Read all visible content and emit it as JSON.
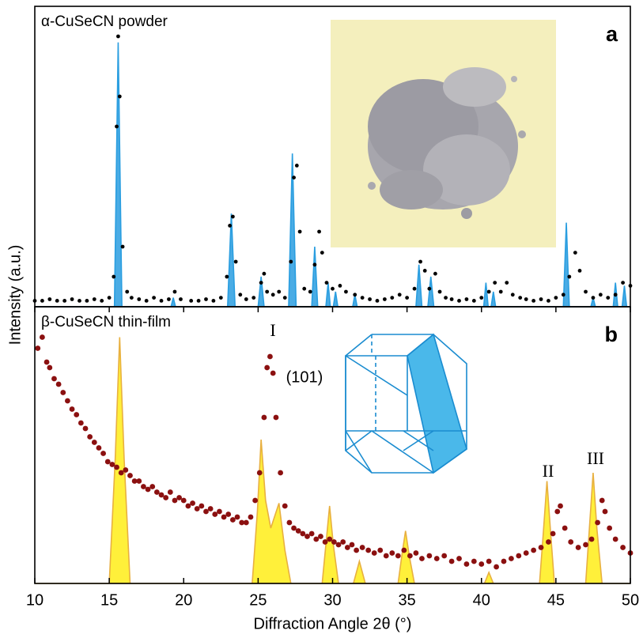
{
  "chart_data": [
    {
      "type": "line",
      "title": "α-CuSeCN powder",
      "panel_label": "a",
      "ylabel": "Intensity (a.u.)",
      "xlim": [
        10,
        50
      ],
      "ylim": [
        0,
        100
      ],
      "series": [
        {
          "kind": "area",
          "color": "#2a9ee0",
          "x": [
            10,
            15.35,
            15.6,
            15.85,
            19.15,
            19.3,
            19.45,
            22.95,
            23.2,
            23.45,
            25.0,
            25.2,
            25.4,
            27.05,
            27.3,
            27.55,
            28.6,
            28.8,
            29.0,
            29.55,
            29.7,
            29.85,
            30.05,
            30.2,
            30.35,
            31.35,
            31.5,
            31.65,
            35.6,
            35.8,
            36.0,
            36.4,
            36.6,
            36.8,
            40.15,
            40.3,
            40.45,
            40.65,
            40.8,
            40.95,
            45.5,
            45.7,
            45.9,
            47.35,
            47.5,
            47.65,
            48.85,
            49.0,
            49.15,
            49.45,
            49.6,
            49.75,
            50
          ],
          "values": [
            0,
            0,
            88,
            0,
            0,
            3,
            0,
            0,
            31,
            0,
            0,
            10,
            0,
            0,
            51,
            0,
            0,
            20,
            0,
            0,
            8,
            0,
            0,
            5,
            0,
            0,
            4,
            0,
            0,
            14,
            0,
            0,
            10,
            0,
            0,
            8,
            0,
            0,
            5,
            0,
            0,
            28,
            0,
            0,
            3,
            0,
            0,
            8,
            0,
            0,
            7,
            0,
            0
          ]
        },
        {
          "kind": "dots",
          "color": "#000000",
          "x": [
            10,
            10.5,
            11,
            11.5,
            12,
            12.5,
            13,
            13.5,
            14,
            14.5,
            15,
            15.3,
            15.5,
            15.6,
            15.7,
            15.9,
            16.2,
            16.5,
            17,
            17.5,
            18,
            18.5,
            19,
            19.4,
            19.8,
            20.5,
            21,
            21.5,
            22,
            22.5,
            22.9,
            23.1,
            23.3,
            23.5,
            23.8,
            24.2,
            24.7,
            25.2,
            25.4,
            25.6,
            26,
            26.4,
            26.8,
            27.2,
            27.4,
            27.6,
            27.8,
            28.1,
            28.5,
            28.8,
            29.1,
            29.3,
            29.6,
            30,
            30.5,
            30.9,
            31.5,
            32,
            32.5,
            33,
            33.5,
            34,
            34.5,
            35,
            35.5,
            35.9,
            36.2,
            36.5,
            36.9,
            37.2,
            37.6,
            38,
            38.5,
            39,
            39.5,
            40,
            40.5,
            40.9,
            41.3,
            41.7,
            42.1,
            42.6,
            43,
            43.5,
            44,
            44.5,
            45,
            45.5,
            45.9,
            46.3,
            46.6,
            47,
            47.5,
            48,
            48.5,
            49,
            49.5,
            50
          ],
          "values": [
            2,
            2,
            2.5,
            2,
            2,
            2.5,
            2,
            2,
            2.5,
            2,
            3,
            10,
            60,
            90,
            70,
            20,
            5,
            3,
            2.5,
            2,
            3,
            2,
            2.5,
            5,
            2.5,
            2,
            2,
            2.5,
            2,
            3,
            10,
            27,
            30,
            15,
            4,
            2.5,
            3,
            8,
            11,
            5,
            4,
            5,
            3,
            15,
            43,
            47,
            25,
            6,
            5,
            14,
            25,
            18,
            8,
            6,
            7,
            5,
            4,
            3,
            2.5,
            2,
            2.5,
            3,
            4,
            3,
            6,
            15,
            12,
            6,
            11,
            5,
            3,
            2.5,
            2,
            2.5,
            2,
            3,
            5,
            8,
            5,
            8,
            4,
            3,
            2.5,
            2,
            2.5,
            2,
            3,
            4,
            10,
            18,
            12,
            5,
            3,
            4,
            3,
            4,
            8,
            7
          ]
        }
      ]
    },
    {
      "type": "line",
      "title": "β-CuSeCN thin-film",
      "panel_label": "b",
      "xlabel": "Diffraction Angle 2θ (°)",
      "xlim": [
        10,
        50
      ],
      "xticks": [
        10,
        15,
        20,
        25,
        30,
        35,
        40,
        45,
        50
      ],
      "ylim": [
        0,
        100
      ],
      "annotations": [
        "I",
        "(101)",
        "II",
        "III"
      ],
      "series": [
        {
          "kind": "area",
          "color": "#e8b040",
          "fill": "#fff03a",
          "x": [
            10,
            15.0,
            15.4,
            15.7,
            16.0,
            16.4,
            24.6,
            24.95,
            25.2,
            25.5,
            25.85,
            26.4,
            26.8,
            27.2,
            29.3,
            29.55,
            29.8,
            30.05,
            30.4,
            31.4,
            31.8,
            32.2,
            34.4,
            34.65,
            34.9,
            35.15,
            35.5,
            40.2,
            40.5,
            40.8,
            43.9,
            44.15,
            44.4,
            44.65,
            44.9,
            47.0,
            47.25,
            47.5,
            47.75,
            48.1,
            50
          ],
          "values": [
            0,
            0,
            45,
            89,
            45,
            0,
            0,
            26,
            52,
            30,
            20,
            29,
            12,
            0,
            0,
            14,
            28,
            14,
            0,
            0,
            8,
            0,
            0,
            10,
            19,
            10,
            0,
            0,
            4,
            0,
            0,
            18,
            37,
            18,
            0,
            0,
            20,
            40,
            20,
            0,
            0
          ]
        },
        {
          "kind": "dots",
          "color": "#8b1010",
          "x": [
            10.2,
            10.5,
            10.8,
            11,
            11.3,
            11.6,
            11.9,
            12.2,
            12.5,
            12.8,
            13.1,
            13.4,
            13.7,
            14,
            14.3,
            14.6,
            14.9,
            15.2,
            15.5,
            15.8,
            16.1,
            16.4,
            16.7,
            17,
            17.3,
            17.6,
            17.9,
            18.2,
            18.5,
            18.8,
            19.1,
            19.4,
            19.7,
            20,
            20.3,
            20.6,
            20.9,
            21.2,
            21.5,
            21.8,
            22.1,
            22.4,
            22.7,
            23,
            23.3,
            23.6,
            23.9,
            24.2,
            24.5,
            24.8,
            25.1,
            25.4,
            25.6,
            25.8,
            26.0,
            26.2,
            26.5,
            26.8,
            27.1,
            27.4,
            27.7,
            28,
            28.3,
            28.6,
            28.9,
            29.2,
            29.5,
            29.8,
            30.1,
            30.4,
            30.7,
            31,
            31.3,
            31.6,
            32,
            32.4,
            32.8,
            33.2,
            33.6,
            34,
            34.4,
            34.8,
            35.2,
            35.6,
            36,
            36.5,
            37,
            37.5,
            38,
            38.5,
            39,
            39.5,
            40,
            40.5,
            41,
            41.5,
            42,
            42.5,
            43,
            43.5,
            44,
            44.5,
            44.8,
            45.1,
            45.3,
            45.6,
            46,
            46.5,
            47,
            47.4,
            47.8,
            48.1,
            48.3,
            48.6,
            49,
            49.5,
            50
          ],
          "values": [
            85,
            89,
            80,
            78,
            74,
            72,
            69,
            66,
            63,
            61,
            58,
            56,
            53,
            51,
            49,
            47,
            44,
            43,
            42,
            40,
            41,
            39,
            37,
            37,
            35,
            34,
            35,
            33,
            32,
            31,
            33,
            30,
            31,
            30,
            28,
            29,
            27,
            28,
            26,
            27,
            25,
            26,
            24,
            25,
            23,
            24,
            22,
            22,
            24,
            30,
            40,
            60,
            78,
            82,
            76,
            60,
            40,
            28,
            22,
            20,
            19,
            18,
            17,
            18,
            16,
            17,
            15,
            16,
            15,
            14,
            15,
            13,
            14,
            12,
            13,
            12,
            11,
            12,
            10,
            11,
            10,
            12,
            10,
            11,
            9,
            10,
            9,
            10,
            8,
            9,
            7,
            8,
            7,
            8,
            6,
            8,
            9,
            10,
            11,
            12,
            13,
            15,
            18,
            26,
            28,
            20,
            15,
            13,
            14,
            16,
            22,
            30,
            26,
            20,
            16,
            13,
            11
          ]
        }
      ]
    }
  ]
}
